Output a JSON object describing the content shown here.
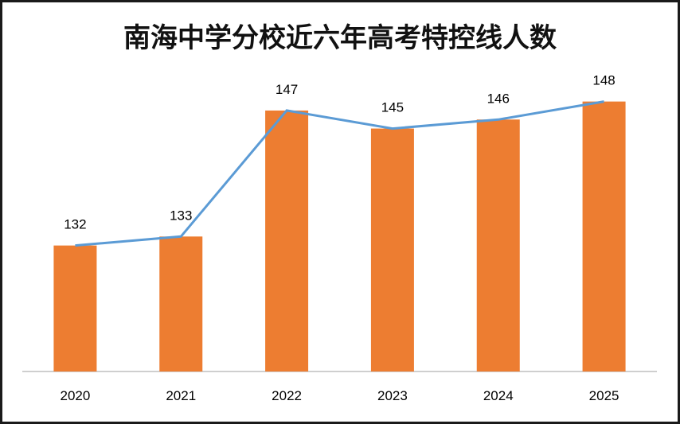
{
  "chart_data": {
    "type": "bar",
    "title": "南海中学分校近六年高考特控线人数",
    "categories": [
      "2020",
      "2021",
      "2022",
      "2023",
      "2024",
      "2025"
    ],
    "values": [
      132,
      133,
      147,
      145,
      146,
      148
    ],
    "line_overlay": true,
    "xlabel": "",
    "ylabel": "",
    "ylim": [
      118,
      150
    ],
    "grid": false,
    "legend": "none",
    "colors": {
      "bar": "#ED7D31",
      "line": "#5B9BD5",
      "axis": "#BFBFBF"
    }
  }
}
